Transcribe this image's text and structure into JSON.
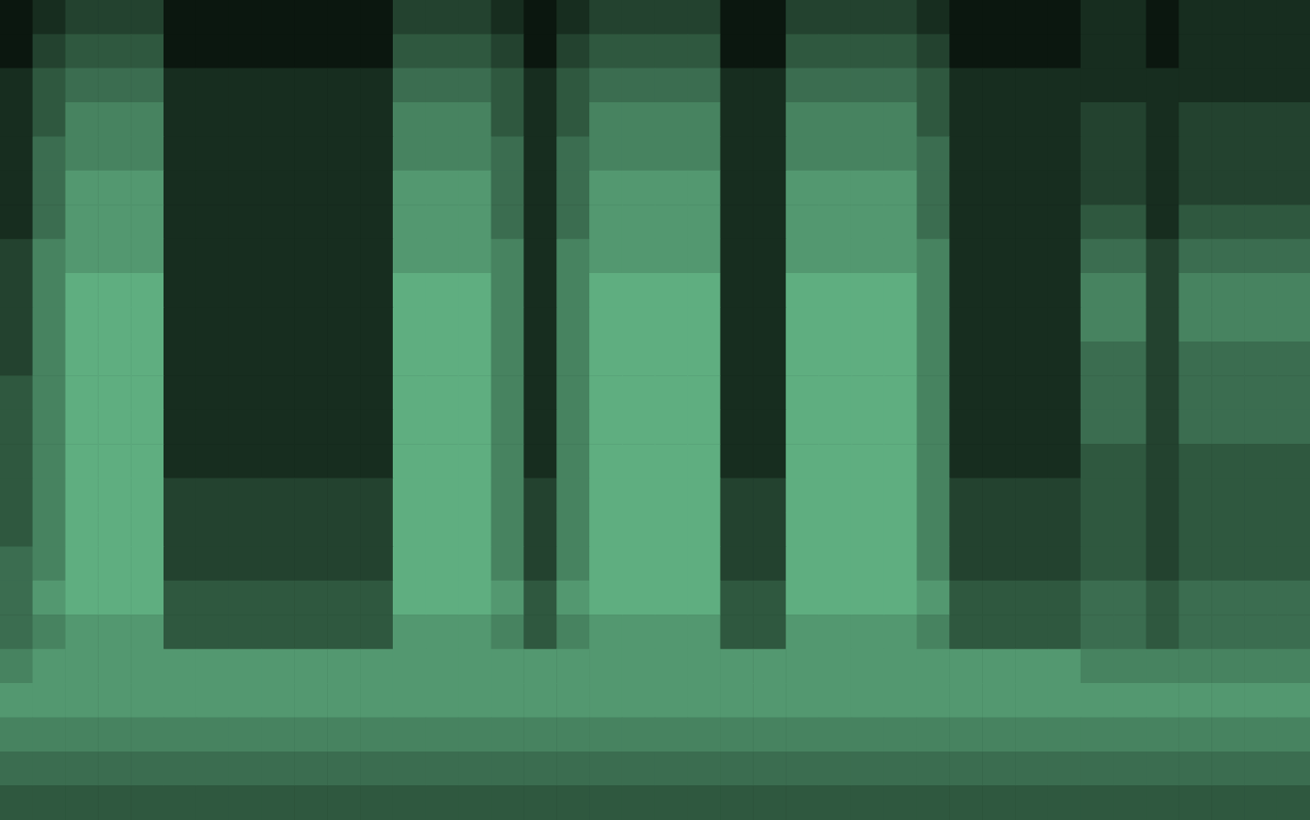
{
  "chart_data": {
    "type": "heatmap",
    "tick_labels": false,
    "zlim": [
      0,
      7
    ],
    "colors": [
      "#0b170f",
      "#5fae80"
    ],
    "cells": [
      [
        0,
        1,
        2,
        2,
        2,
        0,
        0,
        0,
        0,
        0,
        0,
        0,
        2,
        2,
        2,
        1,
        0,
        1,
        2,
        2,
        2,
        2,
        0,
        0,
        2,
        2,
        2,
        2,
        1,
        0,
        0,
        0,
        0,
        1,
        1,
        0,
        1,
        1,
        1,
        1
      ],
      [
        0,
        2,
        3,
        3,
        3,
        0,
        0,
        0,
        0,
        0,
        0,
        0,
        3,
        3,
        3,
        2,
        0,
        2,
        3,
        3,
        3,
        3,
        0,
        0,
        3,
        3,
        3,
        3,
        2,
        0,
        0,
        0,
        0,
        1,
        1,
        0,
        1,
        1,
        1,
        1
      ],
      [
        1,
        3,
        4,
        4,
        4,
        1,
        1,
        1,
        1,
        1,
        1,
        1,
        4,
        4,
        4,
        3,
        1,
        3,
        4,
        4,
        4,
        4,
        1,
        1,
        4,
        4,
        4,
        4,
        3,
        1,
        1,
        1,
        1,
        1,
        1,
        1,
        1,
        1,
        1,
        1
      ],
      [
        1,
        3,
        5,
        5,
        5,
        1,
        1,
        1,
        1,
        1,
        1,
        1,
        5,
        5,
        5,
        3,
        1,
        3,
        5,
        5,
        5,
        5,
        1,
        1,
        5,
        5,
        5,
        5,
        3,
        1,
        1,
        1,
        1,
        2,
        2,
        1,
        2,
        2,
        2,
        2
      ],
      [
        1,
        4,
        5,
        5,
        5,
        1,
        1,
        1,
        1,
        1,
        1,
        1,
        5,
        5,
        5,
        4,
        1,
        4,
        5,
        5,
        5,
        5,
        1,
        1,
        5,
        5,
        5,
        5,
        4,
        1,
        1,
        1,
        1,
        2,
        2,
        1,
        2,
        2,
        2,
        2
      ],
      [
        1,
        4,
        6,
        6,
        6,
        1,
        1,
        1,
        1,
        1,
        1,
        1,
        6,
        6,
        6,
        4,
        1,
        4,
        6,
        6,
        6,
        6,
        1,
        1,
        6,
        6,
        6,
        6,
        4,
        1,
        1,
        1,
        1,
        2,
        2,
        1,
        2,
        2,
        2,
        2
      ],
      [
        1,
        4,
        6,
        6,
        6,
        1,
        1,
        1,
        1,
        1,
        1,
        1,
        6,
        6,
        6,
        4,
        1,
        4,
        6,
        6,
        6,
        6,
        1,
        1,
        6,
        6,
        6,
        6,
        4,
        1,
        1,
        1,
        1,
        3,
        3,
        1,
        3,
        3,
        3,
        3
      ],
      [
        2,
        5,
        6,
        6,
        6,
        1,
        1,
        1,
        1,
        1,
        1,
        1,
        6,
        6,
        6,
        5,
        1,
        5,
        6,
        6,
        6,
        6,
        1,
        1,
        6,
        6,
        6,
        6,
        5,
        1,
        1,
        1,
        1,
        4,
        4,
        2,
        4,
        4,
        4,
        4
      ],
      [
        2,
        5,
        7,
        7,
        7,
        1,
        1,
        1,
        1,
        1,
        1,
        1,
        7,
        7,
        7,
        5,
        1,
        5,
        7,
        7,
        7,
        7,
        1,
        1,
        7,
        7,
        7,
        7,
        5,
        1,
        1,
        1,
        1,
        5,
        5,
        2,
        5,
        5,
        5,
        5
      ],
      [
        2,
        5,
        7,
        7,
        7,
        1,
        1,
        1,
        1,
        1,
        1,
        1,
        7,
        7,
        7,
        5,
        1,
        5,
        7,
        7,
        7,
        7,
        1,
        1,
        7,
        7,
        7,
        7,
        5,
        1,
        1,
        1,
        1,
        5,
        5,
        2,
        5,
        5,
        5,
        5
      ],
      [
        2,
        5,
        7,
        7,
        7,
        1,
        1,
        1,
        1,
        1,
        1,
        1,
        7,
        7,
        7,
        5,
        1,
        5,
        7,
        7,
        7,
        7,
        1,
        1,
        7,
        7,
        7,
        7,
        5,
        1,
        1,
        1,
        1,
        4,
        4,
        2,
        4,
        4,
        4,
        4
      ],
      [
        3,
        5,
        7,
        7,
        7,
        1,
        1,
        1,
        1,
        1,
        1,
        1,
        7,
        7,
        7,
        5,
        1,
        5,
        7,
        7,
        7,
        7,
        1,
        1,
        7,
        7,
        7,
        7,
        5,
        1,
        1,
        1,
        1,
        4,
        4,
        2,
        4,
        4,
        4,
        4
      ],
      [
        3,
        5,
        7,
        7,
        7,
        1,
        1,
        1,
        1,
        1,
        1,
        1,
        7,
        7,
        7,
        5,
        1,
        5,
        7,
        7,
        7,
        7,
        1,
        1,
        7,
        7,
        7,
        7,
        5,
        1,
        1,
        1,
        1,
        4,
        4,
        2,
        4,
        4,
        4,
        4
      ],
      [
        3,
        5,
        7,
        7,
        7,
        1,
        1,
        1,
        1,
        1,
        1,
        1,
        7,
        7,
        7,
        5,
        1,
        5,
        7,
        7,
        7,
        7,
        1,
        1,
        7,
        7,
        7,
        7,
        5,
        1,
        1,
        1,
        1,
        3,
        3,
        2,
        3,
        3,
        3,
        3
      ],
      [
        3,
        5,
        7,
        7,
        7,
        2,
        2,
        2,
        2,
        2,
        2,
        2,
        7,
        7,
        7,
        5,
        2,
        5,
        7,
        7,
        7,
        7,
        2,
        2,
        7,
        7,
        7,
        7,
        5,
        2,
        2,
        2,
        2,
        3,
        3,
        2,
        3,
        3,
        3,
        3
      ],
      [
        3,
        5,
        7,
        7,
        7,
        2,
        2,
        2,
        2,
        2,
        2,
        2,
        7,
        7,
        7,
        5,
        2,
        5,
        7,
        7,
        7,
        7,
        2,
        2,
        7,
        7,
        7,
        7,
        5,
        2,
        2,
        2,
        2,
        3,
        3,
        2,
        3,
        3,
        3,
        3
      ],
      [
        4,
        5,
        7,
        7,
        7,
        2,
        2,
        2,
        2,
        2,
        2,
        2,
        7,
        7,
        7,
        5,
        2,
        5,
        7,
        7,
        7,
        7,
        2,
        2,
        7,
        7,
        7,
        7,
        5,
        2,
        2,
        2,
        2,
        3,
        3,
        2,
        3,
        3,
        3,
        3
      ],
      [
        4,
        6,
        7,
        7,
        7,
        3,
        3,
        3,
        3,
        3,
        3,
        3,
        7,
        7,
        7,
        6,
        3,
        6,
        7,
        7,
        7,
        7,
        3,
        3,
        7,
        7,
        7,
        7,
        6,
        3,
        3,
        3,
        3,
        4,
        4,
        3,
        4,
        4,
        4,
        4
      ],
      [
        4,
        5,
        6,
        6,
        6,
        3,
        3,
        3,
        3,
        3,
        3,
        3,
        6,
        6,
        6,
        5,
        3,
        5,
        6,
        6,
        6,
        6,
        3,
        3,
        6,
        6,
        6,
        6,
        5,
        3,
        3,
        3,
        3,
        4,
        4,
        3,
        4,
        4,
        4,
        4
      ],
      [
        5,
        6,
        6,
        6,
        6,
        6,
        6,
        6,
        6,
        6,
        6,
        6,
        6,
        6,
        6,
        6,
        6,
        6,
        6,
        6,
        6,
        6,
        6,
        6,
        6,
        6,
        6,
        6,
        6,
        6,
        6,
        6,
        6,
        5,
        5,
        5,
        5,
        5,
        5,
        5
      ],
      [
        6,
        6,
        6,
        6,
        6,
        6,
        6,
        6,
        6,
        6,
        6,
        6,
        6,
        6,
        6,
        6,
        6,
        6,
        6,
        6,
        6,
        6,
        6,
        6,
        6,
        6,
        6,
        6,
        6,
        6,
        6,
        6,
        6,
        6,
        6,
        6,
        6,
        6,
        6,
        6
      ],
      [
        5,
        5,
        5,
        5,
        5,
        5,
        5,
        5,
        5,
        5,
        5,
        5,
        5,
        5,
        5,
        5,
        5,
        5,
        5,
        5,
        5,
        5,
        5,
        5,
        5,
        5,
        5,
        5,
        5,
        5,
        5,
        5,
        5,
        5,
        5,
        5,
        5,
        5,
        5,
        5
      ],
      [
        4,
        4,
        4,
        4,
        4,
        4,
        4,
        4,
        4,
        4,
        4,
        4,
        4,
        4,
        4,
        4,
        4,
        4,
        4,
        4,
        4,
        4,
        4,
        4,
        4,
        4,
        4,
        4,
        4,
        4,
        4,
        4,
        4,
        4,
        4,
        4,
        4,
        4,
        4,
        4
      ],
      [
        3,
        3,
        3,
        3,
        3,
        3,
        3,
        3,
        3,
        3,
        3,
        3,
        3,
        3,
        3,
        3,
        3,
        3,
        3,
        3,
        3,
        3,
        3,
        3,
        3,
        3,
        3,
        3,
        3,
        3,
        3,
        3,
        3,
        3,
        3,
        3,
        3,
        3,
        3,
        3
      ]
    ]
  }
}
